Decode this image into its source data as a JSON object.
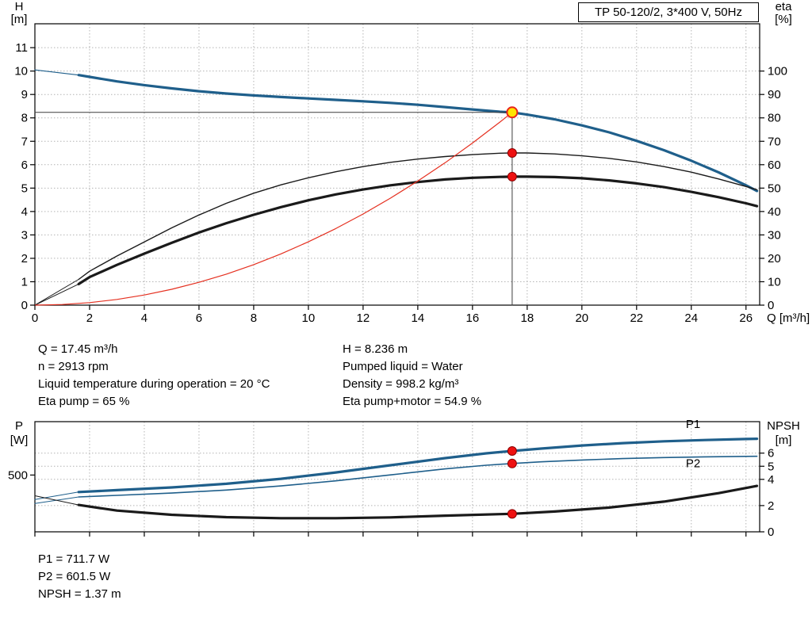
{
  "title_box": "TP 50-120/2, 3*400 V, 50Hz",
  "colors": {
    "curve_blue": "#1f5f8b",
    "curve_black": "#1a1a1a",
    "system_red": "#e53020",
    "marker_red": "#ee1111",
    "marker_red_stroke": "#8b0000",
    "marker_yellow": "#ffe400",
    "duty_line": "#3c3c3c",
    "grid": "#b4b4b4"
  },
  "info_block": {
    "left": [
      "Q = 17.45 m³/h",
      "n = 2913 rpm",
      "Liquid temperature during operation = 20 °C",
      "Eta pump = 65 %"
    ],
    "right": [
      "H = 8.236 m",
      "Pumped liquid = Water",
      "Density = 998.2 kg/m³",
      "Eta pump+motor = 54.9 %"
    ]
  },
  "result_block": [
    "P1 = 711.7 W",
    "P2 = 601.5 W",
    "NPSH = 1.37 m"
  ],
  "chart_data": [
    {
      "id": "top",
      "type": "line",
      "title": "TP 50-120/2, 3*400 V, 50Hz",
      "duty_point": {
        "Q_m3h": 17.45,
        "H_m": 8.236,
        "eta_pump_pct": 65,
        "eta_pump_motor_pct": 54.9
      },
      "x_axis": {
        "label": "Q [m³/h]",
        "min": 0,
        "max": 26.5,
        "show_tick_labels": true,
        "ticks": [
          0,
          2,
          4,
          6,
          8,
          10,
          12,
          14,
          16,
          18,
          20,
          22,
          24,
          26
        ],
        "grid": [
          2,
          4,
          6,
          8,
          10,
          12,
          14,
          16,
          18,
          20,
          22,
          24,
          26
        ]
      },
      "y_left": {
        "label_lines": [
          "H",
          "[m]"
        ],
        "min": 0,
        "max": 12.02,
        "ticks": [
          0,
          1,
          2,
          3,
          4,
          5,
          6,
          7,
          8,
          9,
          10,
          11
        ],
        "grid": [
          1,
          2,
          3,
          4,
          5,
          6,
          7,
          8,
          9,
          10,
          11
        ]
      },
      "y_right": {
        "label_lines": [
          "eta",
          "[%]"
        ],
        "min": 0,
        "max": 120.2,
        "ticks": [
          0,
          10,
          20,
          30,
          40,
          50,
          60,
          70,
          80,
          90,
          100
        ],
        "grid": []
      },
      "series": [
        {
          "name": "pump-head-extension",
          "axis": "left",
          "color": "#1f5f8b",
          "width": 1.2,
          "points": [
            [
              0,
              10.05
            ],
            [
              1.6,
              9.83
            ]
          ]
        },
        {
          "name": "pump-head",
          "axis": "left",
          "color": "#1f5f8b",
          "width": 3.2,
          "points": [
            [
              1.6,
              9.83
            ],
            [
              2,
              9.75
            ],
            [
              3,
              9.56
            ],
            [
              4,
              9.4
            ],
            [
              5,
              9.26
            ],
            [
              6,
              9.14
            ],
            [
              7,
              9.04
            ],
            [
              8,
              8.96
            ],
            [
              9,
              8.89
            ],
            [
              10,
              8.83
            ],
            [
              11,
              8.77
            ],
            [
              12,
              8.71
            ],
            [
              13,
              8.64
            ],
            [
              14,
              8.56
            ],
            [
              15,
              8.46
            ],
            [
              16,
              8.36
            ],
            [
              17,
              8.26
            ],
            [
              17.45,
              8.236
            ],
            [
              18,
              8.14
            ],
            [
              19,
              7.94
            ],
            [
              20,
              7.68
            ],
            [
              21,
              7.38
            ],
            [
              22,
              7.02
            ],
            [
              23,
              6.62
            ],
            [
              24,
              6.17
            ],
            [
              25,
              5.67
            ],
            [
              26,
              5.12
            ],
            [
              26.4,
              4.88
            ]
          ]
        },
        {
          "name": "eta-pump-extension",
          "axis": "right",
          "color": "#1a1a1a",
          "width": 1,
          "points": [
            [
              0,
              0
            ],
            [
              1.6,
              11
            ]
          ]
        },
        {
          "name": "eta-pump",
          "axis": "right",
          "color": "#1a1a1a",
          "width": 1.4,
          "points": [
            [
              1.6,
              11
            ],
            [
              2,
              14.5
            ],
            [
              3,
              21
            ],
            [
              4,
              27
            ],
            [
              5,
              33
            ],
            [
              6,
              38.5
            ],
            [
              7,
              43.5
            ],
            [
              8,
              47.8
            ],
            [
              9,
              51.4
            ],
            [
              10,
              54.4
            ],
            [
              11,
              57
            ],
            [
              12,
              59.2
            ],
            [
              13,
              61
            ],
            [
              14,
              62.4
            ],
            [
              15,
              63.5
            ],
            [
              16,
              64.3
            ],
            [
              17,
              64.9
            ],
            [
              17.45,
              65
            ],
            [
              18,
              65
            ],
            [
              19,
              64.6
            ],
            [
              20,
              63.8
            ],
            [
              21,
              62.7
            ],
            [
              22,
              61.2
            ],
            [
              23,
              59.2
            ],
            [
              24,
              56.8
            ],
            [
              25,
              53.9
            ],
            [
              26,
              50.7
            ],
            [
              26.4,
              49.3
            ]
          ]
        },
        {
          "name": "eta-pump-motor-extension",
          "axis": "right",
          "color": "#1a1a1a",
          "width": 1,
          "points": [
            [
              0,
              0
            ],
            [
              1.6,
              9
            ]
          ]
        },
        {
          "name": "eta-pump-motor",
          "axis": "right",
          "color": "#1a1a1a",
          "width": 3.2,
          "points": [
            [
              1.6,
              9
            ],
            [
              2,
              12
            ],
            [
              3,
              17.2
            ],
            [
              4,
              22
            ],
            [
              5,
              26.6
            ],
            [
              6,
              31
            ],
            [
              7,
              35
            ],
            [
              8,
              38.6
            ],
            [
              9,
              41.9
            ],
            [
              10,
              44.8
            ],
            [
              11,
              47.3
            ],
            [
              12,
              49.4
            ],
            [
              13,
              51.2
            ],
            [
              14,
              52.6
            ],
            [
              15,
              53.7
            ],
            [
              16,
              54.4
            ],
            [
              17,
              54.8
            ],
            [
              17.45,
              54.9
            ],
            [
              18,
              54.9
            ],
            [
              19,
              54.7
            ],
            [
              20,
              54.2
            ],
            [
              21,
              53.3
            ],
            [
              22,
              52
            ],
            [
              23,
              50.4
            ],
            [
              24,
              48.4
            ],
            [
              25,
              46.1
            ],
            [
              26,
              43.5
            ],
            [
              26.4,
              42.3
            ]
          ]
        },
        {
          "name": "system-curve",
          "axis": "left",
          "color": "#e53020",
          "width": 1.2,
          "points": [
            [
              0,
              0
            ],
            [
              1,
              0.027
            ],
            [
              2,
              0.108
            ],
            [
              3,
              0.243
            ],
            [
              4,
              0.433
            ],
            [
              5,
              0.676
            ],
            [
              6,
              0.974
            ],
            [
              7,
              1.325
            ],
            [
              8,
              1.731
            ],
            [
              9,
              2.19
            ],
            [
              10,
              2.705
            ],
            [
              11,
              3.272
            ],
            [
              12,
              3.895
            ],
            [
              13,
              4.571
            ],
            [
              14,
              5.301
            ],
            [
              15,
              6.086
            ],
            [
              16,
              6.924
            ],
            [
              17,
              7.817
            ],
            [
              17.45,
              8.236
            ]
          ]
        },
        {
          "name": "duty-head-line",
          "axis": "left",
          "color": "#3c3c3c",
          "width": 1,
          "points": [
            [
              0,
              8.236
            ],
            [
              17.45,
              8.236
            ]
          ]
        },
        {
          "name": "duty-flow-line",
          "axis": "left",
          "color": "#3c3c3c",
          "width": 1,
          "points": [
            [
              17.45,
              8.236
            ],
            [
              17.45,
              0
            ]
          ]
        }
      ],
      "markers": [
        {
          "name": "eta-pump-duty",
          "q": 17.45,
          "v": 65,
          "axis": "right",
          "r": 5.5,
          "fill": "#ee1111",
          "stroke": "#8b0000",
          "sw": 1,
          "interactable": false
        },
        {
          "name": "eta-pump-motor-duty",
          "q": 17.45,
          "v": 54.9,
          "axis": "right",
          "r": 5.5,
          "fill": "#ee1111",
          "stroke": "#8b0000",
          "sw": 1,
          "interactable": false
        },
        {
          "name": "duty-point",
          "q": 17.45,
          "v": 8.236,
          "axis": "left",
          "r": 6.5,
          "fill": "#ffe400",
          "stroke": "#e8231a",
          "sw": 2,
          "interactable": true
        }
      ],
      "curve_labels": []
    },
    {
      "id": "bottom",
      "type": "line",
      "title": "",
      "duty_point": {
        "P1_W": 711.7,
        "P2_W": 601.5,
        "NPSH_m": 1.37
      },
      "x_axis": {
        "min": 0,
        "max": 26.5,
        "show_tick_labels": false,
        "ticks": [
          0,
          2,
          4,
          6,
          8,
          10,
          12,
          14,
          16,
          18,
          20,
          22,
          24,
          26
        ],
        "grid": [
          2,
          4,
          6,
          8,
          10,
          12,
          14,
          16,
          18,
          20,
          22,
          24,
          26
        ]
      },
      "y_left": {
        "label_lines": [
          "P",
          "[W]"
        ],
        "min": 0,
        "max": 970,
        "ticks": [
          500
        ],
        "grid": []
      },
      "y_right": {
        "label_lines": [
          "NPSH",
          "[m]"
        ],
        "min": 0,
        "max": 8.4,
        "ticks": [
          0,
          2,
          4,
          5,
          6
        ],
        "grid": [
          2,
          4,
          5,
          6
        ]
      },
      "series": [
        {
          "name": "p1-extension",
          "axis": "left",
          "color": "#1f5f8b",
          "width": 1,
          "points": [
            [
              0,
              285
            ],
            [
              1.6,
              350
            ]
          ]
        },
        {
          "name": "p1",
          "axis": "left",
          "color": "#1f5f8b",
          "width": 3.2,
          "points": [
            [
              1.6,
              350
            ],
            [
              3,
              367
            ],
            [
              5,
              391
            ],
            [
              7,
              423
            ],
            [
              9,
              467
            ],
            [
              11,
              523
            ],
            [
              13,
              586
            ],
            [
              15,
              649
            ],
            [
              16.5,
              691
            ],
            [
              17.45,
              711.7
            ],
            [
              18.5,
              733
            ],
            [
              20,
              760
            ],
            [
              21.5,
              781
            ],
            [
              23,
              797
            ],
            [
              24.5,
              808
            ],
            [
              26,
              817
            ],
            [
              26.4,
              819
            ]
          ]
        },
        {
          "name": "p2-extension",
          "axis": "left",
          "color": "#1f5f8b",
          "width": 1,
          "points": [
            [
              0,
              250
            ],
            [
              1.6,
              307
            ]
          ]
        },
        {
          "name": "p2",
          "axis": "left",
          "color": "#1f5f8b",
          "width": 1.6,
          "points": [
            [
              1.6,
              307
            ],
            [
              3,
              321
            ],
            [
              5,
              341
            ],
            [
              7,
              368
            ],
            [
              9,
              404
            ],
            [
              11,
              449
            ],
            [
              13,
              501
            ],
            [
              15,
              554
            ],
            [
              16.5,
              586
            ],
            [
              17.45,
              601.5
            ],
            [
              18.5,
              616
            ],
            [
              20,
              632
            ],
            [
              21.5,
              645
            ],
            [
              23,
              654
            ],
            [
              24.5,
              660
            ],
            [
              26,
              664
            ],
            [
              26.4,
              665
            ]
          ]
        },
        {
          "name": "npsh-extension",
          "axis": "right",
          "color": "#1a1a1a",
          "width": 1,
          "points": [
            [
              0,
              2.75
            ],
            [
              1.6,
              2.05
            ]
          ]
        },
        {
          "name": "npsh",
          "axis": "right",
          "color": "#1a1a1a",
          "width": 3.2,
          "points": [
            [
              1.6,
              2.05
            ],
            [
              3,
              1.62
            ],
            [
              5,
              1.3
            ],
            [
              7,
              1.12
            ],
            [
              9,
              1.04
            ],
            [
              11,
              1.04
            ],
            [
              13,
              1.1
            ],
            [
              15,
              1.23
            ],
            [
              17,
              1.35
            ],
            [
              17.45,
              1.37
            ],
            [
              19,
              1.55
            ],
            [
              21,
              1.85
            ],
            [
              23,
              2.3
            ],
            [
              25,
              2.95
            ],
            [
              26.4,
              3.5
            ]
          ]
        }
      ],
      "markers": [
        {
          "name": "p1-duty",
          "q": 17.45,
          "v": 711.7,
          "axis": "left",
          "r": 5.5,
          "fill": "#ee1111",
          "stroke": "#8b0000",
          "sw": 1,
          "interactable": false
        },
        {
          "name": "p2-duty",
          "q": 17.45,
          "v": 601.5,
          "axis": "left",
          "r": 5.5,
          "fill": "#ee1111",
          "stroke": "#8b0000",
          "sw": 1,
          "interactable": false
        },
        {
          "name": "npsh-duty",
          "q": 17.45,
          "v": 1.37,
          "axis": "right",
          "r": 5.5,
          "fill": "#ee1111",
          "stroke": "#8b0000",
          "sw": 1,
          "interactable": false
        }
      ],
      "curve_labels": [
        {
          "text": "P1",
          "q": 23.8,
          "v": 915,
          "axis": "left",
          "color": "#1f5f8b"
        },
        {
          "text": "P2",
          "q": 23.8,
          "v": 570,
          "axis": "left",
          "color": "#1f5f8b"
        }
      ]
    }
  ]
}
